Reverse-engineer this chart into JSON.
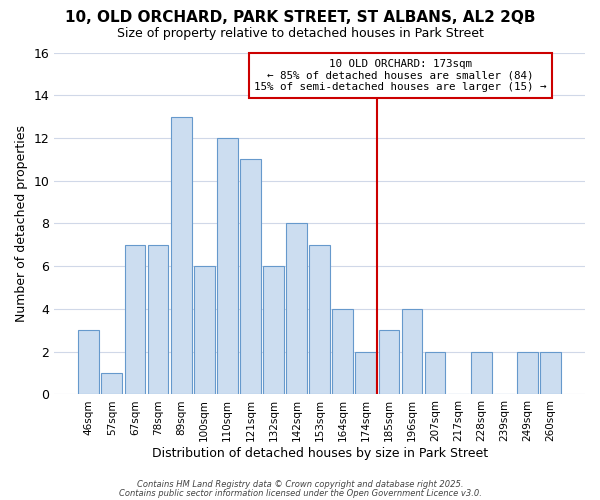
{
  "title_line1": "10, OLD ORCHARD, PARK STREET, ST ALBANS, AL2 2QB",
  "title_line2": "Size of property relative to detached houses in Park Street",
  "xlabel": "Distribution of detached houses by size in Park Street",
  "ylabel": "Number of detached properties",
  "bar_labels": [
    "46sqm",
    "57sqm",
    "67sqm",
    "78sqm",
    "89sqm",
    "100sqm",
    "110sqm",
    "121sqm",
    "132sqm",
    "142sqm",
    "153sqm",
    "164sqm",
    "174sqm",
    "185sqm",
    "196sqm",
    "207sqm",
    "217sqm",
    "228sqm",
    "239sqm",
    "249sqm",
    "260sqm"
  ],
  "bar_values": [
    3,
    1,
    7,
    7,
    13,
    6,
    12,
    11,
    6,
    8,
    7,
    4,
    2,
    3,
    4,
    2,
    0,
    2,
    0,
    2,
    2
  ],
  "bar_color": "#ccddf0",
  "bar_edge_color": "#6699cc",
  "marker_label_line1": "10 OLD ORCHARD: 173sqm",
  "marker_label_line2": "← 85% of detached houses are smaller (84)",
  "marker_label_line3": "15% of semi-detached houses are larger (15) →",
  "marker_color": "#cc0000",
  "ylim": [
    0,
    16
  ],
  "yticks": [
    0,
    2,
    4,
    6,
    8,
    10,
    12,
    14,
    16
  ],
  "background_color": "#ffffff",
  "grid_color": "#d0d8e8",
  "footer_line1": "Contains HM Land Registry data © Crown copyright and database right 2025.",
  "footer_line2": "Contains public sector information licensed under the Open Government Licence v3.0."
}
